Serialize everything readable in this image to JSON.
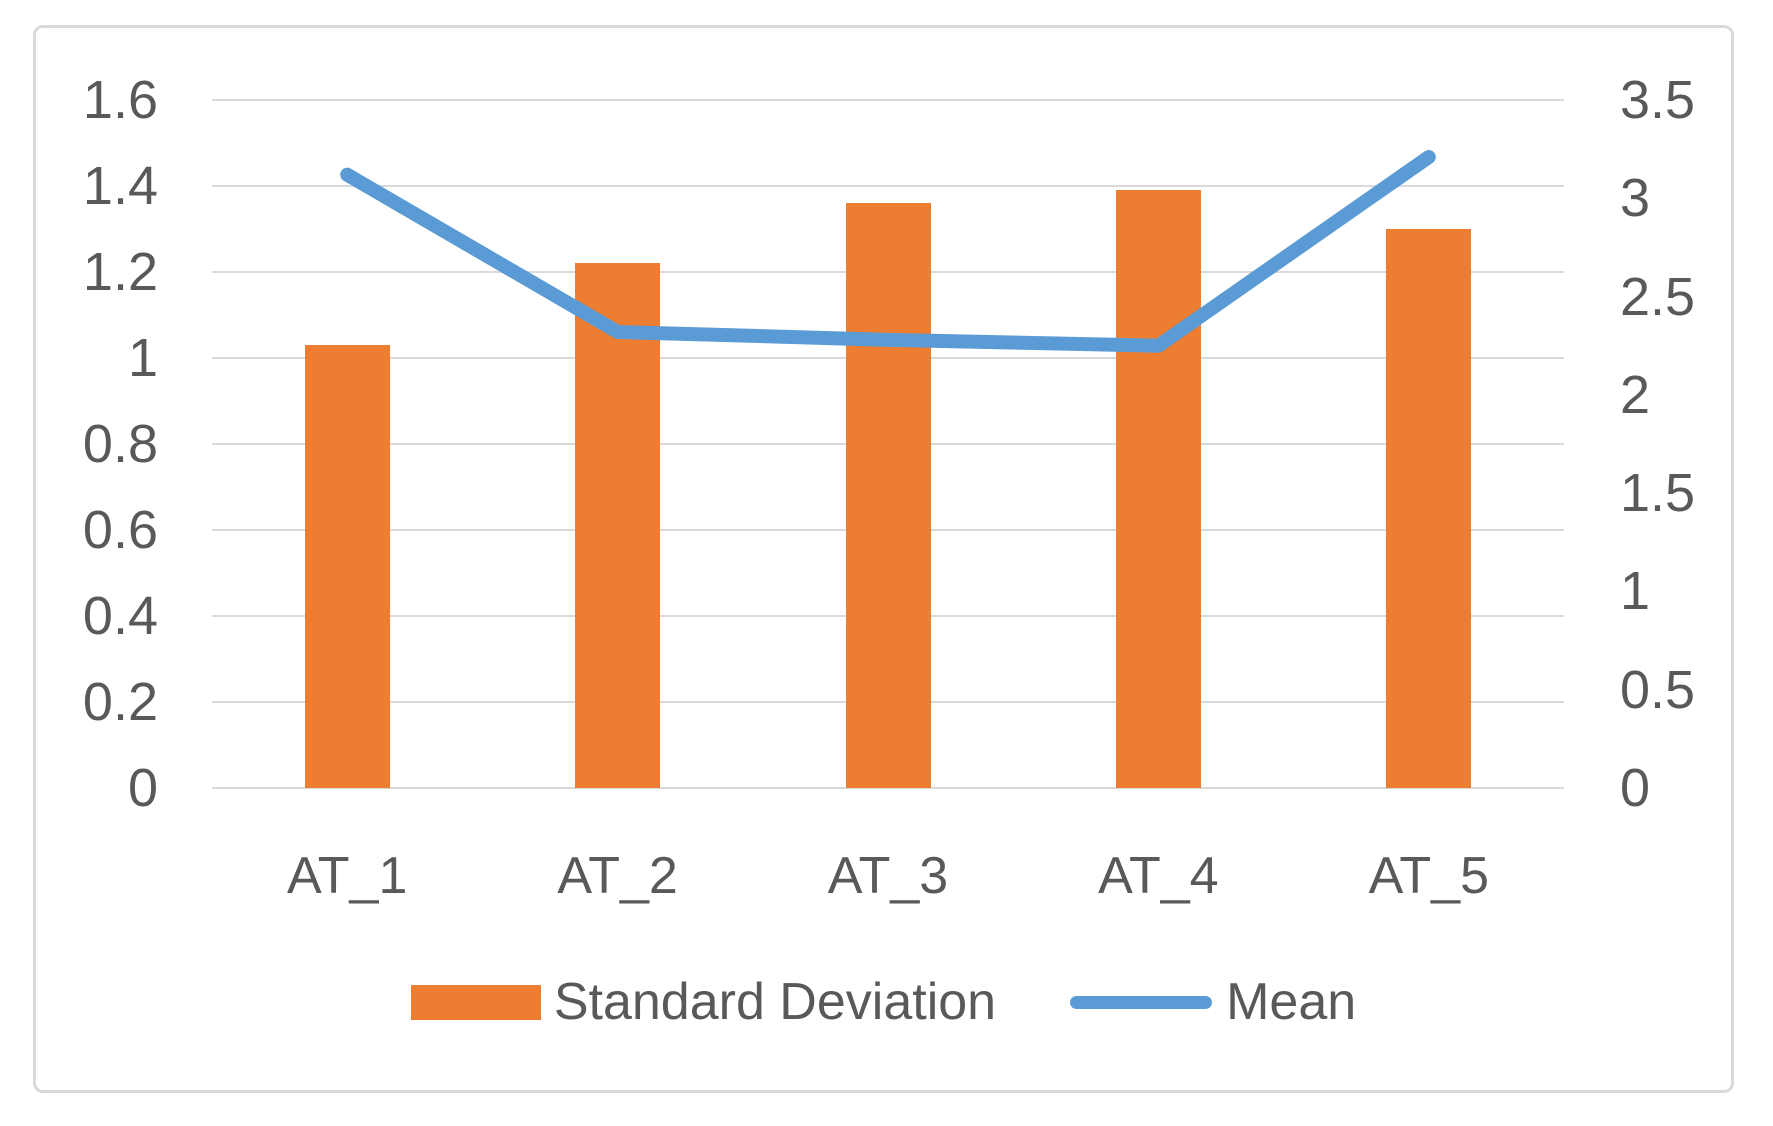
{
  "figure": {
    "background": "#FFFFFF",
    "frame_border_color": "#D9D9D9"
  },
  "chart_data": {
    "type": "combo",
    "subtype": "bar+line",
    "categories": [
      "AT_1",
      "AT_2",
      "AT_3",
      "AT_4",
      "AT_5"
    ],
    "series": [
      {
        "name": "Standard Deviation",
        "type": "bar",
        "axis": "left",
        "color": "#ED7D31",
        "values": [
          1.03,
          1.22,
          1.36,
          1.39,
          1.3
        ]
      },
      {
        "name": "Mean",
        "type": "line",
        "axis": "right",
        "color": "#5B9BD5",
        "values": [
          3.12,
          2.32,
          2.28,
          2.25,
          3.21
        ]
      }
    ],
    "left_axis": {
      "min": 0,
      "max": 1.6,
      "step": 0.2,
      "tick_labels": [
        "1.6",
        "1.4",
        "1.2",
        "1",
        "0.8",
        "0.6",
        "0.4",
        "0.2",
        "0"
      ]
    },
    "right_axis": {
      "min": 0,
      "max": 3.5,
      "step": 0.5,
      "tick_labels": [
        "3.5",
        "3",
        "2.5",
        "2",
        "1.5",
        "1",
        "0.5",
        "0"
      ]
    },
    "grid": {
      "show": true,
      "color": "#D9D9D9"
    },
    "legend": {
      "position": "bottom"
    },
    "text_color": "#595959",
    "title": "",
    "xlabel": "",
    "ylabel": ""
  }
}
